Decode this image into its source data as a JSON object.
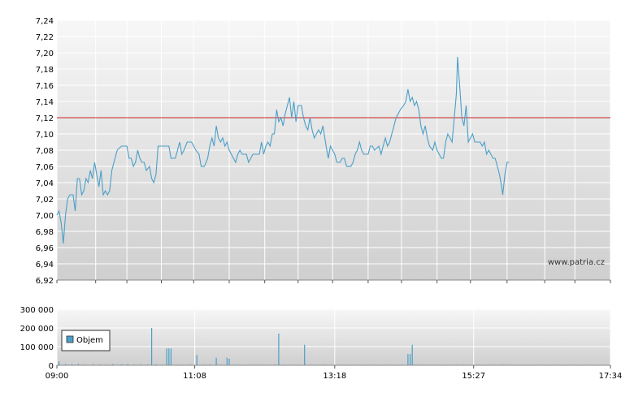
{
  "watermark": "www.patria.cz",
  "colors": {
    "price_line": "#4a9fc8",
    "reference_line": "#cc2222",
    "volume_bar": "#4a9fc8",
    "grid": "#ffffff",
    "panel_top": "#f7f7f7",
    "panel_bottom": "#cfcfcf"
  },
  "chart_data": [
    {
      "type": "line",
      "name": "price",
      "ylim": [
        6.92,
        7.24
      ],
      "y_ticks": [
        "7,24",
        "7,22",
        "7,20",
        "7,18",
        "7,16",
        "7,14",
        "7,12",
        "7,10",
        "7,08",
        "7,06",
        "7,04",
        "7,02",
        "7,00",
        "6,98",
        "6,96",
        "6,94",
        "6,92"
      ],
      "reference_value": 7.12,
      "x_minutes_range": [
        540,
        1054
      ],
      "grid": true,
      "points": [
        [
          540,
          7.0
        ],
        [
          542,
          7.005
        ],
        [
          544,
          6.99
        ],
        [
          546,
          6.965
        ],
        [
          548,
          7.0
        ],
        [
          550,
          7.02
        ],
        [
          552,
          7.025
        ],
        [
          555,
          7.025
        ],
        [
          557,
          7.005
        ],
        [
          559,
          7.045
        ],
        [
          561,
          7.045
        ],
        [
          563,
          7.025
        ],
        [
          565,
          7.03
        ],
        [
          567,
          7.045
        ],
        [
          569,
          7.04
        ],
        [
          571,
          7.055
        ],
        [
          573,
          7.045
        ],
        [
          575,
          7.065
        ],
        [
          577,
          7.05
        ],
        [
          579,
          7.035
        ],
        [
          581,
          7.055
        ],
        [
          583,
          7.025
        ],
        [
          585,
          7.03
        ],
        [
          587,
          7.025
        ],
        [
          589,
          7.03
        ],
        [
          591,
          7.055
        ],
        [
          593,
          7.065
        ],
        [
          596,
          7.08
        ],
        [
          600,
          7.085
        ],
        [
          605,
          7.085
        ],
        [
          607,
          7.07
        ],
        [
          609,
          7.07
        ],
        [
          611,
          7.06
        ],
        [
          613,
          7.065
        ],
        [
          615,
          7.08
        ],
        [
          617,
          7.07
        ],
        [
          619,
          7.065
        ],
        [
          621,
          7.065
        ],
        [
          623,
          7.055
        ],
        [
          626,
          7.06
        ],
        [
          628,
          7.045
        ],
        [
          630,
          7.04
        ],
        [
          632,
          7.05
        ],
        [
          634,
          7.085
        ],
        [
          638,
          7.085
        ],
        [
          642,
          7.085
        ],
        [
          644,
          7.085
        ],
        [
          646,
          7.07
        ],
        [
          650,
          7.07
        ],
        [
          652,
          7.08
        ],
        [
          654,
          7.09
        ],
        [
          656,
          7.075
        ],
        [
          658,
          7.08
        ],
        [
          661,
          7.09
        ],
        [
          665,
          7.09
        ],
        [
          667,
          7.085
        ],
        [
          669,
          7.08
        ],
        [
          672,
          7.075
        ],
        [
          674,
          7.06
        ],
        [
          677,
          7.06
        ],
        [
          680,
          7.07
        ],
        [
          682,
          7.085
        ],
        [
          684,
          7.095
        ],
        [
          686,
          7.085
        ],
        [
          688,
          7.11
        ],
        [
          690,
          7.095
        ],
        [
          692,
          7.09
        ],
        [
          694,
          7.095
        ],
        [
          696,
          7.085
        ],
        [
          698,
          7.09
        ],
        [
          700,
          7.08
        ],
        [
          702,
          7.075
        ],
        [
          704,
          7.07
        ],
        [
          706,
          7.065
        ],
        [
          708,
          7.075
        ],
        [
          710,
          7.08
        ],
        [
          712,
          7.075
        ],
        [
          716,
          7.075
        ],
        [
          718,
          7.065
        ],
        [
          720,
          7.07
        ],
        [
          722,
          7.075
        ],
        [
          728,
          7.075
        ],
        [
          730,
          7.09
        ],
        [
          732,
          7.075
        ],
        [
          734,
          7.085
        ],
        [
          736,
          7.09
        ],
        [
          738,
          7.085
        ],
        [
          740,
          7.1
        ],
        [
          742,
          7.1
        ],
        [
          744,
          7.13
        ],
        [
          746,
          7.115
        ],
        [
          748,
          7.12
        ],
        [
          750,
          7.11
        ],
        [
          752,
          7.125
        ],
        [
          754,
          7.135
        ],
        [
          756,
          7.145
        ],
        [
          758,
          7.12
        ],
        [
          760,
          7.14
        ],
        [
          762,
          7.115
        ],
        [
          764,
          7.135
        ],
        [
          767,
          7.135
        ],
        [
          769,
          7.12
        ],
        [
          771,
          7.11
        ],
        [
          773,
          7.105
        ],
        [
          775,
          7.12
        ],
        [
          777,
          7.105
        ],
        [
          779,
          7.095
        ],
        [
          781,
          7.1
        ],
        [
          783,
          7.105
        ],
        [
          785,
          7.1
        ],
        [
          787,
          7.11
        ],
        [
          790,
          7.085
        ],
        [
          792,
          7.07
        ],
        [
          794,
          7.085
        ],
        [
          796,
          7.08
        ],
        [
          798,
          7.075
        ],
        [
          800,
          7.065
        ],
        [
          803,
          7.065
        ],
        [
          805,
          7.07
        ],
        [
          807,
          7.07
        ],
        [
          809,
          7.06
        ],
        [
          813,
          7.06
        ],
        [
          815,
          7.065
        ],
        [
          817,
          7.075
        ],
        [
          819,
          7.08
        ],
        [
          821,
          7.09
        ],
        [
          823,
          7.08
        ],
        [
          825,
          7.075
        ],
        [
          829,
          7.075
        ],
        [
          831,
          7.085
        ],
        [
          833,
          7.085
        ],
        [
          835,
          7.08
        ],
        [
          839,
          7.085
        ],
        [
          841,
          7.075
        ],
        [
          843,
          7.085
        ],
        [
          845,
          7.095
        ],
        [
          847,
          7.085
        ],
        [
          849,
          7.09
        ],
        [
          851,
          7.1
        ],
        [
          853,
          7.11
        ],
        [
          855,
          7.12
        ],
        [
          857,
          7.125
        ],
        [
          859,
          7.13
        ],
        [
          862,
          7.135
        ],
        [
          864,
          7.14
        ],
        [
          866,
          7.155
        ],
        [
          868,
          7.14
        ],
        [
          870,
          7.145
        ],
        [
          872,
          7.135
        ],
        [
          874,
          7.14
        ],
        [
          876,
          7.13
        ],
        [
          878,
          7.11
        ],
        [
          880,
          7.1
        ],
        [
          882,
          7.11
        ],
        [
          884,
          7.095
        ],
        [
          886,
          7.085
        ],
        [
          889,
          7.08
        ],
        [
          891,
          7.09
        ],
        [
          893,
          7.08
        ],
        [
          895,
          7.075
        ],
        [
          897,
          7.07
        ],
        [
          899,
          7.07
        ],
        [
          901,
          7.09
        ],
        [
          903,
          7.1
        ],
        [
          905,
          7.095
        ],
        [
          907,
          7.09
        ],
        [
          909,
          7.12
        ],
        [
          911,
          7.15
        ],
        [
          912,
          7.195
        ],
        [
          914,
          7.16
        ],
        [
          916,
          7.12
        ],
        [
          918,
          7.11
        ],
        [
          920,
          7.135
        ],
        [
          922,
          7.09
        ],
        [
          924,
          7.095
        ],
        [
          926,
          7.1
        ],
        [
          928,
          7.09
        ],
        [
          933,
          7.09
        ],
        [
          935,
          7.085
        ],
        [
          937,
          7.09
        ],
        [
          939,
          7.075
        ],
        [
          941,
          7.08
        ],
        [
          943,
          7.075
        ],
        [
          945,
          7.07
        ],
        [
          947,
          7.07
        ],
        [
          949,
          7.06
        ],
        [
          951,
          7.05
        ],
        [
          953,
          7.035
        ],
        [
          954,
          7.025
        ],
        [
          956,
          7.05
        ],
        [
          958,
          7.065
        ],
        [
          960,
          7.065
        ]
      ]
    },
    {
      "type": "bar",
      "name": "volume",
      "ylim": [
        0,
        300000
      ],
      "y_ticks": [
        "300 000",
        "200 000",
        "100 000",
        "0"
      ],
      "x_tick_labels": [
        "09:00",
        "11:08",
        "13:18",
        "15:27",
        "17:34"
      ],
      "legend": "Objem",
      "legend_position": "bottom-left",
      "x_minutes_range": [
        540,
        1054
      ],
      "grid": true,
      "bars": [
        [
          542,
          20000
        ],
        [
          548,
          6000
        ],
        [
          554,
          5000
        ],
        [
          560,
          7000
        ],
        [
          566,
          4000
        ],
        [
          574,
          6000
        ],
        [
          580,
          5000
        ],
        [
          586,
          4000
        ],
        [
          592,
          6000
        ],
        [
          600,
          5000
        ],
        [
          606,
          7000
        ],
        [
          612,
          4000
        ],
        [
          618,
          5000
        ],
        [
          624,
          4000
        ],
        [
          628,
          200000
        ],
        [
          632,
          5000
        ],
        [
          638,
          3000
        ],
        [
          642,
          90000
        ],
        [
          644,
          90000
        ],
        [
          646,
          90000
        ],
        [
          652,
          3000
        ],
        [
          658,
          2000
        ],
        [
          664,
          4000
        ],
        [
          670,
          55000
        ],
        [
          676,
          3000
        ],
        [
          682,
          4000
        ],
        [
          688,
          40000
        ],
        [
          692,
          3000
        ],
        [
          698,
          40000
        ],
        [
          700,
          35000
        ],
        [
          706,
          3000
        ],
        [
          712,
          2000
        ],
        [
          718,
          3000
        ],
        [
          724,
          2000
        ],
        [
          730,
          3000
        ],
        [
          736,
          2000
        ],
        [
          742,
          4000
        ],
        [
          746,
          170000
        ],
        [
          752,
          3000
        ],
        [
          758,
          2000
        ],
        [
          764,
          3000
        ],
        [
          770,
          110000
        ],
        [
          776,
          3000
        ],
        [
          782,
          2000
        ],
        [
          788,
          3000
        ],
        [
          794,
          2000
        ],
        [
          800,
          3000
        ],
        [
          806,
          2000
        ],
        [
          812,
          3000
        ],
        [
          818,
          2000
        ],
        [
          824,
          3000
        ],
        [
          830,
          2000
        ],
        [
          836,
          3000
        ],
        [
          842,
          2000
        ],
        [
          848,
          3000
        ],
        [
          854,
          2000
        ],
        [
          860,
          3000
        ],
        [
          866,
          60000
        ],
        [
          868,
          60000
        ],
        [
          870,
          110000
        ],
        [
          876,
          3000
        ],
        [
          882,
          2000
        ],
        [
          888,
          3000
        ],
        [
          894,
          2000
        ],
        [
          900,
          3000
        ],
        [
          906,
          2000
        ],
        [
          912,
          4000
        ],
        [
          918,
          3000
        ],
        [
          924,
          2000
        ],
        [
          930,
          3000
        ],
        [
          936,
          2000
        ],
        [
          942,
          3000
        ],
        [
          948,
          2000
        ],
        [
          954,
          4000
        ],
        [
          958,
          3000
        ]
      ]
    }
  ]
}
